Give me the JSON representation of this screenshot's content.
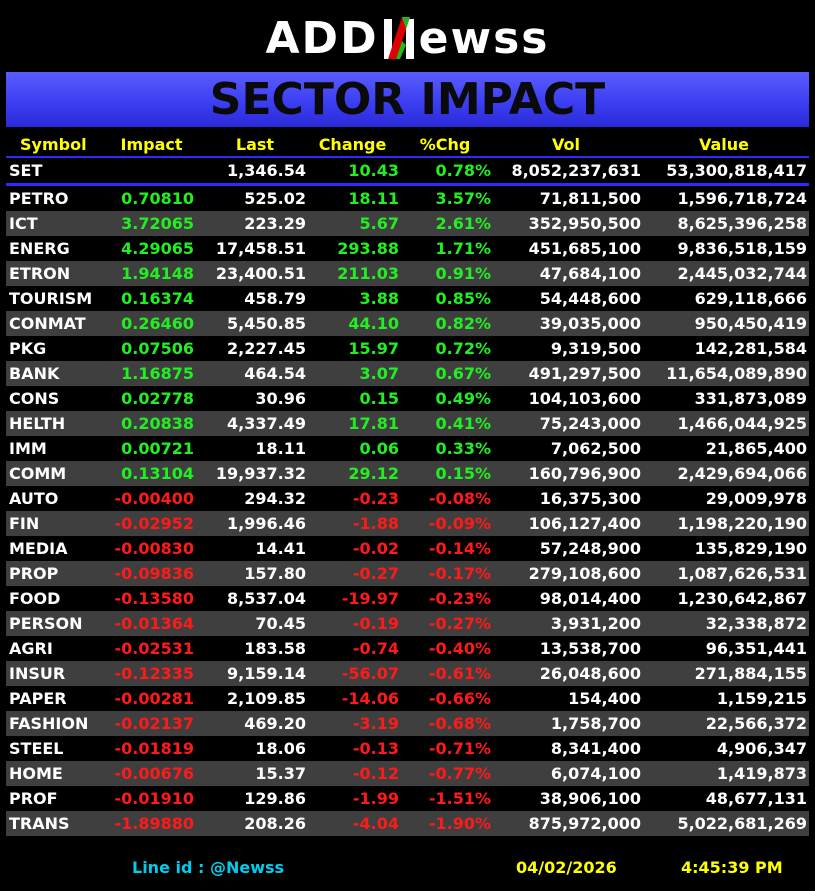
{
  "logo": {
    "text_left": "ADD",
    "text_right": "ewss"
  },
  "banner": {
    "title": "SECTOR IMPACT"
  },
  "columns": [
    "Symbol",
    "Impact",
    "Last",
    "Change",
    "%Chg",
    "Vol",
    "Value"
  ],
  "set_row": {
    "symbol": "SET",
    "impact": "",
    "last": "1,346.54",
    "change": "10.43",
    "pchg": "0.78%",
    "vol": "8,052,237,631",
    "value": "53,300,818,417"
  },
  "rows": [
    {
      "symbol": "PETRO",
      "impact": "0.70810",
      "last": "525.02",
      "change": "18.11",
      "pchg": "3.57%",
      "vol": "71,811,500",
      "value": "1,596,718,724",
      "dir": "pos"
    },
    {
      "symbol": "ICT",
      "impact": "3.72065",
      "last": "223.29",
      "change": "5.67",
      "pchg": "2.61%",
      "vol": "352,950,500",
      "value": "8,625,396,258",
      "dir": "pos"
    },
    {
      "symbol": "ENERG",
      "impact": "4.29065",
      "last": "17,458.51",
      "change": "293.88",
      "pchg": "1.71%",
      "vol": "451,685,100",
      "value": "9,836,518,159",
      "dir": "pos"
    },
    {
      "symbol": "ETRON",
      "impact": "1.94148",
      "last": "23,400.51",
      "change": "211.03",
      "pchg": "0.91%",
      "vol": "47,684,100",
      "value": "2,445,032,744",
      "dir": "pos"
    },
    {
      "symbol": "TOURISM",
      "impact": "0.16374",
      "last": "458.79",
      "change": "3.88",
      "pchg": "0.85%",
      "vol": "54,448,600",
      "value": "629,118,666",
      "dir": "pos"
    },
    {
      "symbol": "CONMAT",
      "impact": "0.26460",
      "last": "5,450.85",
      "change": "44.10",
      "pchg": "0.82%",
      "vol": "39,035,000",
      "value": "950,450,419",
      "dir": "pos"
    },
    {
      "symbol": "PKG",
      "impact": "0.07506",
      "last": "2,227.45",
      "change": "15.97",
      "pchg": "0.72%",
      "vol": "9,319,500",
      "value": "142,281,584",
      "dir": "pos"
    },
    {
      "symbol": "BANK",
      "impact": "1.16875",
      "last": "464.54",
      "change": "3.07",
      "pchg": "0.67%",
      "vol": "491,297,500",
      "value": "11,654,089,890",
      "dir": "pos"
    },
    {
      "symbol": "CONS",
      "impact": "0.02778",
      "last": "30.96",
      "change": "0.15",
      "pchg": "0.49%",
      "vol": "104,103,600",
      "value": "331,873,089",
      "dir": "pos"
    },
    {
      "symbol": "HELTH",
      "impact": "0.20838",
      "last": "4,337.49",
      "change": "17.81",
      "pchg": "0.41%",
      "vol": "75,243,000",
      "value": "1,466,044,925",
      "dir": "pos"
    },
    {
      "symbol": "IMM",
      "impact": "0.00721",
      "last": "18.11",
      "change": "0.06",
      "pchg": "0.33%",
      "vol": "7,062,500",
      "value": "21,865,400",
      "dir": "pos"
    },
    {
      "symbol": "COMM",
      "impact": "0.13104",
      "last": "19,937.32",
      "change": "29.12",
      "pchg": "0.15%",
      "vol": "160,796,900",
      "value": "2,429,694,066",
      "dir": "pos"
    },
    {
      "symbol": "AUTO",
      "impact": "-0.00400",
      "last": "294.32",
      "change": "-0.23",
      "pchg": "-0.08%",
      "vol": "16,375,300",
      "value": "29,009,978",
      "dir": "neg"
    },
    {
      "symbol": "FIN",
      "impact": "-0.02952",
      "last": "1,996.46",
      "change": "-1.88",
      "pchg": "-0.09%",
      "vol": "106,127,400",
      "value": "1,198,220,190",
      "dir": "neg"
    },
    {
      "symbol": "MEDIA",
      "impact": "-0.00830",
      "last": "14.41",
      "change": "-0.02",
      "pchg": "-0.14%",
      "vol": "57,248,900",
      "value": "135,829,190",
      "dir": "neg"
    },
    {
      "symbol": "PROP",
      "impact": "-0.09836",
      "last": "157.80",
      "change": "-0.27",
      "pchg": "-0.17%",
      "vol": "279,108,600",
      "value": "1,087,626,531",
      "dir": "neg"
    },
    {
      "symbol": "FOOD",
      "impact": "-0.13580",
      "last": "8,537.04",
      "change": "-19.97",
      "pchg": "-0.23%",
      "vol": "98,014,400",
      "value": "1,230,642,867",
      "dir": "neg"
    },
    {
      "symbol": "PERSON",
      "impact": "-0.01364",
      "last": "70.45",
      "change": "-0.19",
      "pchg": "-0.27%",
      "vol": "3,931,200",
      "value": "32,338,872",
      "dir": "neg"
    },
    {
      "symbol": "AGRI",
      "impact": "-0.02531",
      "last": "183.58",
      "change": "-0.74",
      "pchg": "-0.40%",
      "vol": "13,538,700",
      "value": "96,351,441",
      "dir": "neg"
    },
    {
      "symbol": "INSUR",
      "impact": "-0.12335",
      "last": "9,159.14",
      "change": "-56.07",
      "pchg": "-0.61%",
      "vol": "26,048,600",
      "value": "271,884,155",
      "dir": "neg"
    },
    {
      "symbol": "PAPER",
      "impact": "-0.00281",
      "last": "2,109.85",
      "change": "-14.06",
      "pchg": "-0.66%",
      "vol": "154,400",
      "value": "1,159,215",
      "dir": "neg"
    },
    {
      "symbol": "FASHION",
      "impact": "-0.02137",
      "last": "469.20",
      "change": "-3.19",
      "pchg": "-0.68%",
      "vol": "1,758,700",
      "value": "22,566,372",
      "dir": "neg"
    },
    {
      "symbol": "STEEL",
      "impact": "-0.01819",
      "last": "18.06",
      "change": "-0.13",
      "pchg": "-0.71%",
      "vol": "8,341,400",
      "value": "4,906,347",
      "dir": "neg"
    },
    {
      "symbol": "HOME",
      "impact": "-0.00676",
      "last": "15.37",
      "change": "-0.12",
      "pchg": "-0.77%",
      "vol": "6,074,100",
      "value": "1,419,873",
      "dir": "neg"
    },
    {
      "symbol": "PROF",
      "impact": "-0.01910",
      "last": "129.86",
      "change": "-1.99",
      "pchg": "-1.51%",
      "vol": "38,906,100",
      "value": "48,677,131",
      "dir": "neg"
    },
    {
      "symbol": "TRANS",
      "impact": "-1.89880",
      "last": "208.26",
      "change": "-4.04",
      "pchg": "-1.90%",
      "vol": "875,972,000",
      "value": "5,022,681,269",
      "dir": "neg"
    }
  ],
  "footer": {
    "line_id": "Line id  : @Newss",
    "date": "04/02/2026",
    "time": "4:45:39 PM"
  },
  "colors": {
    "positive": "#22ee22",
    "negative": "#ff1a1a",
    "header": "#ffff00",
    "banner": "#3a3cf0",
    "line_id": "#00ccee"
  }
}
